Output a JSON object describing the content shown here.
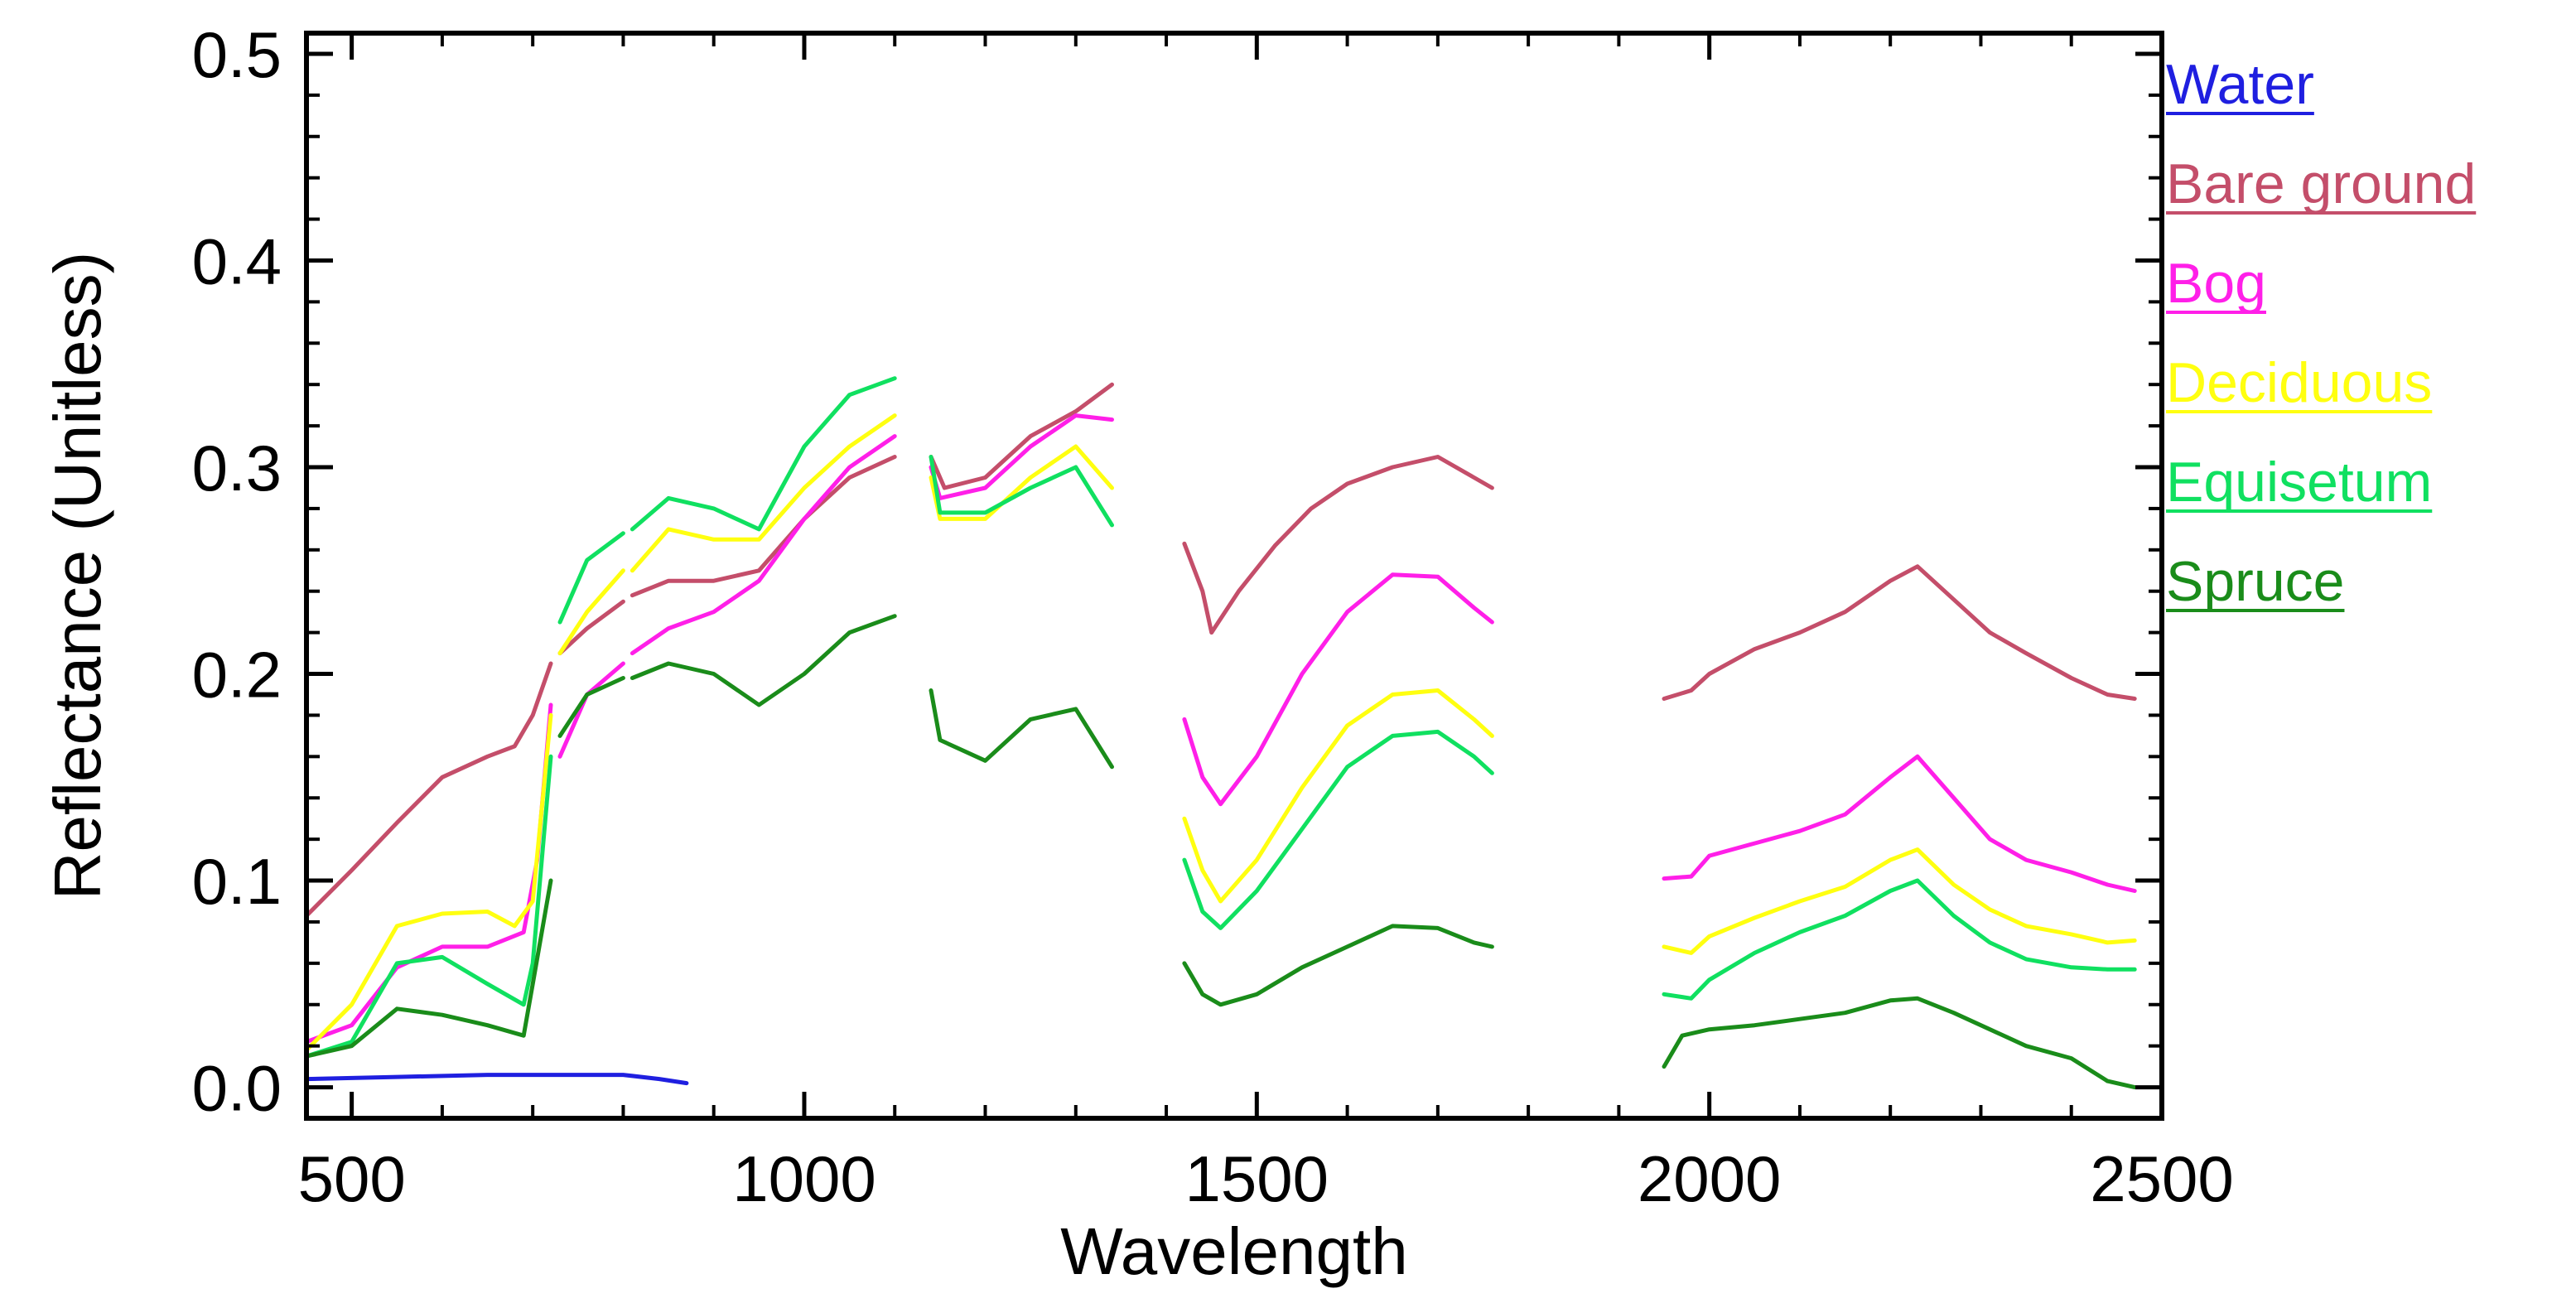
{
  "chart_data": {
    "type": "line",
    "title": "",
    "xlabel": "Wavelength",
    "ylabel": "Reflectance (Unitless)",
    "xlim": [
      450,
      2500
    ],
    "ylim": [
      -0.015,
      0.51
    ],
    "xticks": [
      500,
      1000,
      1500,
      2000,
      2500
    ],
    "xtick_labels": [
      "500",
      "1000",
      "1500",
      "2000",
      "2500"
    ],
    "yticks": [
      0.0,
      0.1,
      0.2,
      0.3,
      0.4,
      0.5
    ],
    "ytick_labels": [
      "0.0",
      "0.1",
      "0.2",
      "0.3",
      "0.4",
      "0.5"
    ],
    "legend_position": "right, outside plot",
    "series": [
      {
        "name": "Water",
        "color": "#1f1fe0",
        "segments": [
          [
            [
              450,
              0.004
            ],
            [
              550,
              0.005
            ],
            [
              650,
              0.006
            ],
            [
              720,
              0.006
            ],
            [
              800,
              0.006
            ],
            [
              840,
              0.004
            ],
            [
              870,
              0.002
            ]
          ]
        ]
      },
      {
        "name": "Bare ground",
        "color": "#c44e6a",
        "segments": [
          [
            [
              450,
              0.083
            ],
            [
              500,
              0.105
            ],
            [
              550,
              0.128
            ],
            [
              600,
              0.15
            ],
            [
              650,
              0.16
            ],
            [
              680,
              0.165
            ],
            [
              700,
              0.18
            ],
            [
              720,
              0.205
            ]
          ],
          [
            [
              730,
              0.21
            ],
            [
              760,
              0.222
            ],
            [
              800,
              0.235
            ]
          ],
          [
            [
              810,
              0.238
            ],
            [
              850,
              0.245
            ],
            [
              900,
              0.245
            ],
            [
              950,
              0.25
            ],
            [
              1000,
              0.275
            ],
            [
              1050,
              0.295
            ],
            [
              1100,
              0.305
            ]
          ],
          [
            [
              1140,
              0.305
            ],
            [
              1155,
              0.29
            ],
            [
              1200,
              0.295
            ],
            [
              1250,
              0.315
            ],
            [
              1300,
              0.327
            ],
            [
              1340,
              0.34
            ]
          ],
          [
            [
              1420,
              0.263
            ],
            [
              1440,
              0.24
            ],
            [
              1450,
              0.22
            ],
            [
              1480,
              0.24
            ],
            [
              1520,
              0.262
            ],
            [
              1560,
              0.28
            ],
            [
              1600,
              0.292
            ],
            [
              1650,
              0.3
            ],
            [
              1700,
              0.305
            ],
            [
              1740,
              0.295
            ],
            [
              1760,
              0.29
            ]
          ],
          [
            [
              1950,
              0.188
            ],
            [
              1980,
              0.192
            ],
            [
              2000,
              0.2
            ],
            [
              2050,
              0.212
            ],
            [
              2100,
              0.22
            ],
            [
              2150,
              0.23
            ],
            [
              2200,
              0.245
            ],
            [
              2230,
              0.252
            ],
            [
              2270,
              0.236
            ],
            [
              2310,
              0.22
            ],
            [
              2350,
              0.21
            ],
            [
              2400,
              0.198
            ],
            [
              2440,
              0.19
            ],
            [
              2470,
              0.188
            ]
          ]
        ]
      },
      {
        "name": "Bog",
        "color": "#ff1fe8",
        "segments": [
          [
            [
              450,
              0.022
            ],
            [
              500,
              0.03
            ],
            [
              550,
              0.058
            ],
            [
              600,
              0.068
            ],
            [
              650,
              0.068
            ],
            [
              690,
              0.075
            ],
            [
              705,
              0.11
            ],
            [
              720,
              0.185
            ]
          ],
          [
            [
              730,
              0.16
            ],
            [
              760,
              0.19
            ],
            [
              800,
              0.205
            ]
          ],
          [
            [
              810,
              0.21
            ],
            [
              850,
              0.222
            ],
            [
              900,
              0.23
            ],
            [
              950,
              0.245
            ],
            [
              1000,
              0.275
            ],
            [
              1050,
              0.3
            ],
            [
              1100,
              0.315
            ]
          ],
          [
            [
              1140,
              0.3
            ],
            [
              1150,
              0.285
            ],
            [
              1200,
              0.29
            ],
            [
              1250,
              0.31
            ],
            [
              1300,
              0.325
            ],
            [
              1340,
              0.323
            ]
          ],
          [
            [
              1420,
              0.178
            ],
            [
              1440,
              0.15
            ],
            [
              1460,
              0.137
            ],
            [
              1500,
              0.16
            ],
            [
              1550,
              0.2
            ],
            [
              1600,
              0.23
            ],
            [
              1650,
              0.248
            ],
            [
              1700,
              0.247
            ],
            [
              1740,
              0.232
            ],
            [
              1760,
              0.225
            ]
          ],
          [
            [
              1950,
              0.101
            ],
            [
              1980,
              0.102
            ],
            [
              2000,
              0.112
            ],
            [
              2050,
              0.118
            ],
            [
              2100,
              0.124
            ],
            [
              2150,
              0.132
            ],
            [
              2200,
              0.15
            ],
            [
              2230,
              0.16
            ],
            [
              2270,
              0.14
            ],
            [
              2310,
              0.12
            ],
            [
              2350,
              0.11
            ],
            [
              2400,
              0.104
            ],
            [
              2440,
              0.098
            ],
            [
              2470,
              0.095
            ]
          ]
        ]
      },
      {
        "name": "Deciduous",
        "color": "#ffff10",
        "segments": [
          [
            [
              450,
              0.018
            ],
            [
              500,
              0.04
            ],
            [
              550,
              0.078
            ],
            [
              600,
              0.084
            ],
            [
              650,
              0.085
            ],
            [
              680,
              0.078
            ],
            [
              700,
              0.09
            ],
            [
              720,
              0.18
            ]
          ],
          [
            [
              730,
              0.21
            ],
            [
              760,
              0.23
            ],
            [
              800,
              0.25
            ]
          ],
          [
            [
              810,
              0.25
            ],
            [
              850,
              0.27
            ],
            [
              900,
              0.265
            ],
            [
              950,
              0.265
            ],
            [
              1000,
              0.29
            ],
            [
              1050,
              0.31
            ],
            [
              1100,
              0.325
            ]
          ],
          [
            [
              1140,
              0.295
            ],
            [
              1150,
              0.275
            ],
            [
              1200,
              0.275
            ],
            [
              1250,
              0.295
            ],
            [
              1300,
              0.31
            ],
            [
              1340,
              0.29
            ]
          ],
          [
            [
              1420,
              0.13
            ],
            [
              1440,
              0.105
            ],
            [
              1460,
              0.09
            ],
            [
              1500,
              0.11
            ],
            [
              1550,
              0.145
            ],
            [
              1600,
              0.175
            ],
            [
              1650,
              0.19
            ],
            [
              1700,
              0.192
            ],
            [
              1740,
              0.178
            ],
            [
              1760,
              0.17
            ]
          ],
          [
            [
              1950,
              0.068
            ],
            [
              1980,
              0.065
            ],
            [
              2000,
              0.073
            ],
            [
              2050,
              0.082
            ],
            [
              2100,
              0.09
            ],
            [
              2150,
              0.097
            ],
            [
              2200,
              0.11
            ],
            [
              2230,
              0.115
            ],
            [
              2270,
              0.098
            ],
            [
              2310,
              0.086
            ],
            [
              2350,
              0.078
            ],
            [
              2400,
              0.074
            ],
            [
              2440,
              0.07
            ],
            [
              2470,
              0.071
            ]
          ]
        ]
      },
      {
        "name": "Equisetum",
        "color": "#10e060",
        "segments": [
          [
            [
              450,
              0.015
            ],
            [
              500,
              0.022
            ],
            [
              550,
              0.06
            ],
            [
              600,
              0.063
            ],
            [
              650,
              0.05
            ],
            [
              690,
              0.04
            ],
            [
              700,
              0.06
            ],
            [
              720,
              0.16
            ]
          ],
          [
            [
              730,
              0.225
            ],
            [
              760,
              0.255
            ],
            [
              800,
              0.268
            ]
          ],
          [
            [
              810,
              0.27
            ],
            [
              850,
              0.285
            ],
            [
              900,
              0.28
            ],
            [
              950,
              0.27
            ],
            [
              1000,
              0.31
            ],
            [
              1050,
              0.335
            ],
            [
              1100,
              0.343
            ]
          ],
          [
            [
              1140,
              0.305
            ],
            [
              1150,
              0.278
            ],
            [
              1200,
              0.278
            ],
            [
              1250,
              0.29
            ],
            [
              1300,
              0.3
            ],
            [
              1340,
              0.272
            ]
          ],
          [
            [
              1420,
              0.11
            ],
            [
              1440,
              0.085
            ],
            [
              1460,
              0.077
            ],
            [
              1500,
              0.095
            ],
            [
              1550,
              0.125
            ],
            [
              1600,
              0.155
            ],
            [
              1650,
              0.17
            ],
            [
              1700,
              0.172
            ],
            [
              1740,
              0.16
            ],
            [
              1760,
              0.152
            ]
          ],
          [
            [
              1950,
              0.045
            ],
            [
              1980,
              0.043
            ],
            [
              2000,
              0.052
            ],
            [
              2050,
              0.065
            ],
            [
              2100,
              0.075
            ],
            [
              2150,
              0.083
            ],
            [
              2200,
              0.095
            ],
            [
              2230,
              0.1
            ],
            [
              2270,
              0.083
            ],
            [
              2310,
              0.07
            ],
            [
              2350,
              0.062
            ],
            [
              2400,
              0.058
            ],
            [
              2440,
              0.057
            ],
            [
              2470,
              0.057
            ]
          ]
        ]
      },
      {
        "name": "Spruce",
        "color": "#1a8c1a",
        "segments": [
          [
            [
              450,
              0.015
            ],
            [
              500,
              0.02
            ],
            [
              550,
              0.038
            ],
            [
              600,
              0.035
            ],
            [
              650,
              0.03
            ],
            [
              690,
              0.025
            ],
            [
              700,
              0.05
            ],
            [
              720,
              0.1
            ]
          ],
          [
            [
              730,
              0.17
            ],
            [
              760,
              0.19
            ],
            [
              800,
              0.198
            ]
          ],
          [
            [
              810,
              0.198
            ],
            [
              850,
              0.205
            ],
            [
              900,
              0.2
            ],
            [
              950,
              0.185
            ],
            [
              1000,
              0.2
            ],
            [
              1050,
              0.22
            ],
            [
              1100,
              0.228
            ]
          ],
          [
            [
              1140,
              0.192
            ],
            [
              1150,
              0.168
            ],
            [
              1200,
              0.158
            ],
            [
              1250,
              0.178
            ],
            [
              1300,
              0.183
            ],
            [
              1340,
              0.155
            ]
          ],
          [
            [
              1420,
              0.06
            ],
            [
              1440,
              0.045
            ],
            [
              1460,
              0.04
            ],
            [
              1500,
              0.045
            ],
            [
              1550,
              0.058
            ],
            [
              1600,
              0.068
            ],
            [
              1650,
              0.078
            ],
            [
              1700,
              0.077
            ],
            [
              1740,
              0.07
            ],
            [
              1760,
              0.068
            ]
          ],
          [
            [
              1950,
              0.01
            ],
            [
              1970,
              0.025
            ],
            [
              2000,
              0.028
            ],
            [
              2050,
              0.03
            ],
            [
              2100,
              0.033
            ],
            [
              2150,
              0.036
            ],
            [
              2200,
              0.042
            ],
            [
              2230,
              0.043
            ],
            [
              2270,
              0.036
            ],
            [
              2310,
              0.028
            ],
            [
              2350,
              0.02
            ],
            [
              2400,
              0.014
            ],
            [
              2440,
              0.003
            ],
            [
              2470,
              0.0
            ]
          ]
        ]
      }
    ]
  }
}
